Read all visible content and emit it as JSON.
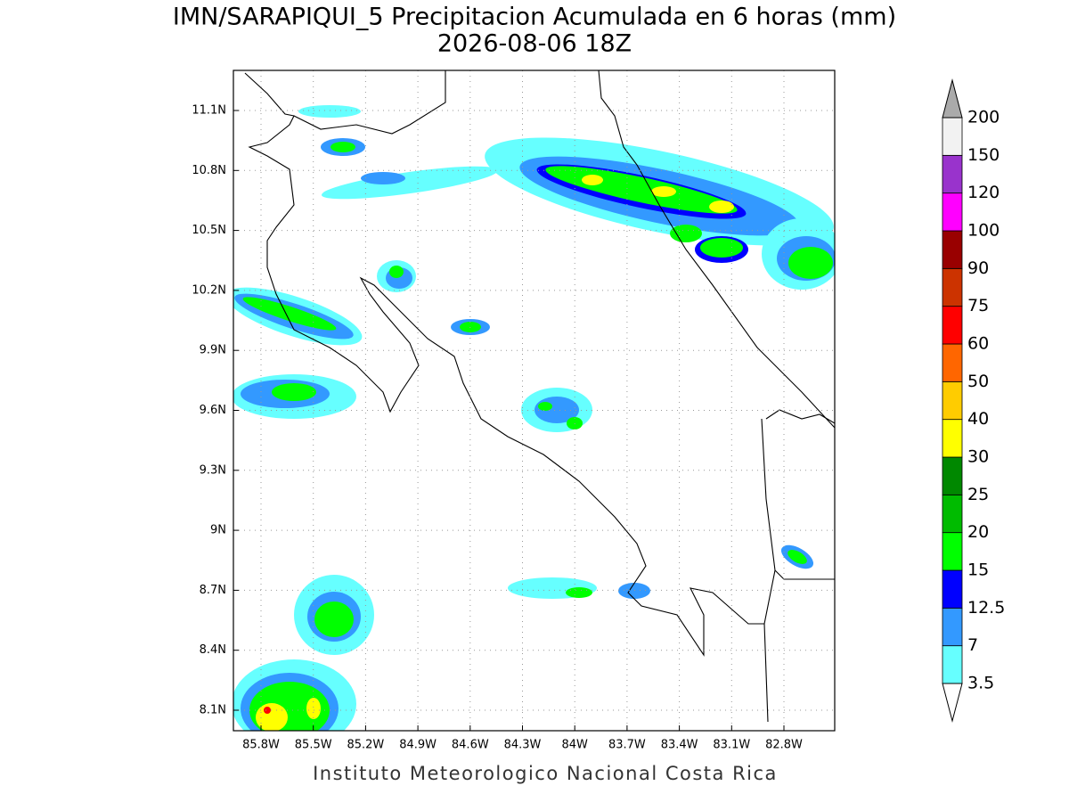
{
  "header": {
    "title": "IMN/SARAPIQUI_5 Precipitacion Acumulada en 6 horas (mm)",
    "subtitle": "2026-08-06 18Z"
  },
  "map": {
    "lat_ticks": [
      "11.1N",
      "10.8N",
      "10.5N",
      "10.2N",
      "9.9N",
      "9.6N",
      "9.3N",
      "9N",
      "8.7N",
      "8.4N",
      "8.1N"
    ],
    "lon_ticks": [
      "85.8W",
      "85.5W",
      "85.2W",
      "84.9W",
      "84.6W",
      "84.3W",
      "84W",
      "83.7W",
      "83.4W",
      "83.1W",
      "82.8W"
    ]
  },
  "colorbar": {
    "levels": [
      "3.5",
      "7",
      "12.5",
      "15",
      "20",
      "25",
      "30",
      "40",
      "50",
      "60",
      "75",
      "90",
      "100",
      "120",
      "150",
      "200"
    ],
    "colors": [
      "#66ffff",
      "#3399ff",
      "#0000ff",
      "#00ff00",
      "#00bb00",
      "#008800",
      "#ffff00",
      "#ffcc00",
      "#ff6600",
      "#ff0000",
      "#cc3300",
      "#990000",
      "#ff00ff",
      "#9933cc",
      "#f2f2f2"
    ],
    "under_color": "#ffffff",
    "over_color": "#aaaaaa"
  },
  "footer": "Instituto Meteorologico Nacional Costa Rica"
}
